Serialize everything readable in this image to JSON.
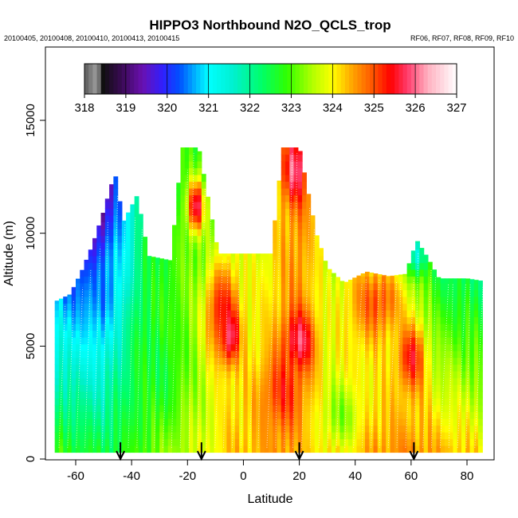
{
  "chart_data": {
    "type": "heatmap",
    "title": "HIPPO3 Northbound N2O_QCLS_trop",
    "subtitle_left": "20100405, 20100408, 20100410, 20100413, 20100415",
    "subtitle_right": "RF06, RF07, RF08, RF09, RF10",
    "xlabel": "Latitude",
    "ylabel": "Altitude (m)",
    "xlim": [
      -70,
      87
    ],
    "ylim": [
      0,
      17500
    ],
    "x_ticks": [
      -60,
      -40,
      -20,
      0,
      20,
      40,
      60,
      80
    ],
    "x_tick_labels": [
      "-60",
      "-40",
      "-20",
      "0",
      "20",
      "40",
      "60",
      "80"
    ],
    "y_ticks": [
      0,
      5000,
      10000,
      15000
    ],
    "y_tick_labels": [
      "0",
      "5000",
      "10000",
      "15000"
    ],
    "colorbar": {
      "range": [
        318,
        327
      ],
      "ticks": [
        318,
        319,
        320,
        321,
        322,
        323,
        324,
        325,
        326,
        327
      ],
      "tick_labels": [
        "318",
        "319",
        "320",
        "321",
        "322",
        "323",
        "324",
        "325",
        "326",
        "327"
      ]
    },
    "flight_markers_latitude": [
      -44,
      -15,
      20,
      61
    ],
    "ceiling_profile": [
      {
        "lat": -67,
        "alt": 7000
      },
      {
        "lat": -62,
        "alt": 7300
      },
      {
        "lat": -58,
        "alt": 8300
      },
      {
        "lat": -54,
        "alt": 9500
      },
      {
        "lat": -50,
        "alt": 11000
      },
      {
        "lat": -46,
        "alt": 12700
      },
      {
        "lat": -43,
        "alt": 10500
      },
      {
        "lat": -38,
        "alt": 11700
      },
      {
        "lat": -34,
        "alt": 9000
      },
      {
        "lat": -26,
        "alt": 8800
      },
      {
        "lat": -22,
        "alt": 13800
      },
      {
        "lat": -16,
        "alt": 13800
      },
      {
        "lat": -9,
        "alt": 9100
      },
      {
        "lat": 3,
        "alt": 9100
      },
      {
        "lat": 10,
        "alt": 9100
      },
      {
        "lat": 14,
        "alt": 13800
      },
      {
        "lat": 20,
        "alt": 13800
      },
      {
        "lat": 26,
        "alt": 10000
      },
      {
        "lat": 30,
        "alt": 8500
      },
      {
        "lat": 36,
        "alt": 7800
      },
      {
        "lat": 44,
        "alt": 8300
      },
      {
        "lat": 52,
        "alt": 8100
      },
      {
        "lat": 58,
        "alt": 8200
      },
      {
        "lat": 62,
        "alt": 9700
      },
      {
        "lat": 66,
        "alt": 8900
      },
      {
        "lat": 70,
        "alt": 8000
      },
      {
        "lat": 80,
        "alt": 8000
      },
      {
        "lat": 85,
        "alt": 7900
      }
    ],
    "floor_altitude_m": 300,
    "value_profile": [
      {
        "lat": -67,
        "surface": 323.0,
        "top": 320.8
      },
      {
        "lat": -60,
        "surface": 322.8,
        "top": 320.3
      },
      {
        "lat": -50,
        "surface": 322.6,
        "top": 319.2
      },
      {
        "lat": -44,
        "surface": 322.7,
        "top": 320.5
      },
      {
        "lat": -35,
        "surface": 323.1,
        "top": 322.4
      },
      {
        "lat": -25,
        "surface": 323.5,
        "top": 322.9
      },
      {
        "lat": -15,
        "surface": 323.8,
        "top": 322.8
      },
      {
        "lat": -5,
        "surface": 324.3,
        "top": 323.7
      },
      {
        "lat": 5,
        "surface": 324.4,
        "top": 323.8
      },
      {
        "lat": 15,
        "surface": 324.6,
        "top": 324.3
      },
      {
        "lat": 20,
        "surface": 324.3,
        "top": 324.8
      },
      {
        "lat": 30,
        "surface": 324.2,
        "top": 323.6
      },
      {
        "lat": 40,
        "surface": 324.4,
        "top": 323.8
      },
      {
        "lat": 50,
        "surface": 324.6,
        "top": 323.4
      },
      {
        "lat": 60,
        "surface": 324.7,
        "top": 323.0
      },
      {
        "lat": 70,
        "surface": 324.5,
        "top": 322.5
      },
      {
        "lat": 85,
        "surface": 324.2,
        "top": 322.3
      }
    ],
    "anomalies": [
      {
        "lat": -5,
        "alt": 5600,
        "value": 326.6,
        "radius_deg": 3,
        "radius_m": 1100
      },
      {
        "lat": -8,
        "alt": 6500,
        "value": 325.3,
        "radius_deg": 6,
        "radius_m": 2200
      },
      {
        "lat": -17,
        "alt": 11200,
        "value": 325.8,
        "radius_deg": 3,
        "radius_m": 1200
      },
      {
        "lat": 18,
        "alt": 12800,
        "value": 325.9,
        "radius_deg": 4,
        "radius_m": 1400
      },
      {
        "lat": 20,
        "alt": 5200,
        "value": 325.9,
        "radius_deg": 5,
        "radius_m": 1300
      },
      {
        "lat": 14,
        "alt": 3000,
        "value": 325.2,
        "radius_deg": 7,
        "radius_m": 1600
      },
      {
        "lat": 60,
        "alt": 4500,
        "value": 325.4,
        "radius_deg": 5,
        "radius_m": 1500
      },
      {
        "lat": 62,
        "alt": 9000,
        "value": 321.2,
        "radius_deg": 3,
        "radius_m": 800
      },
      {
        "lat": 48,
        "alt": 7000,
        "value": 325.0,
        "radius_deg": 10,
        "radius_m": 1800
      },
      {
        "lat": -50,
        "alt": 8000,
        "value": 320.6,
        "radius_deg": 5,
        "radius_m": 1500
      },
      {
        "lat": -30,
        "alt": 4000,
        "value": 322.6,
        "radius_deg": 9,
        "radius_m": 2500
      },
      {
        "lat": 35,
        "alt": 2000,
        "value": 323.3,
        "radius_deg": 7,
        "radius_m": 1500
      }
    ]
  }
}
